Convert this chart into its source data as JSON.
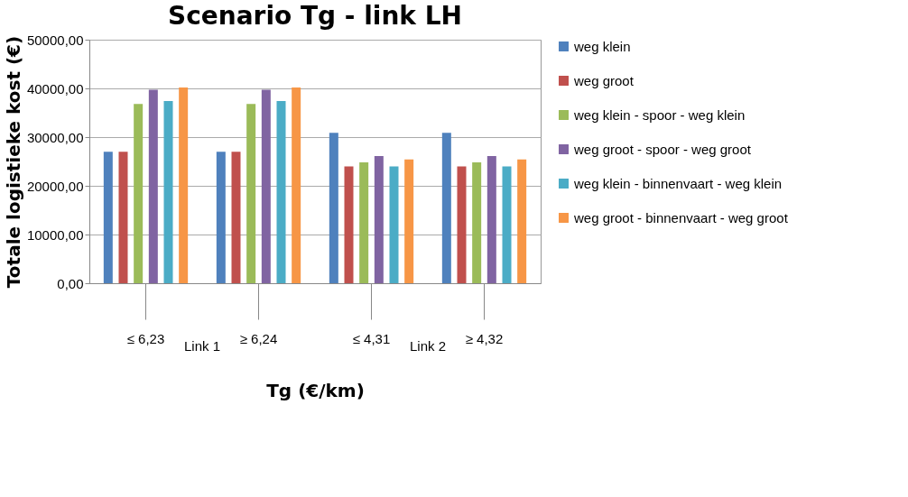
{
  "chart_data": {
    "type": "bar",
    "title": "Scenario Tg - link LH",
    "xlabel": "Tg  (€/km)",
    "ylabel": "Totale logistieke kost (€)",
    "categories": [
      "≤ 6,23",
      "≥ 6,24",
      "≤ 4,31",
      "≥ 4,32"
    ],
    "annotations": [
      "Link 1",
      "Link 2"
    ],
    "series": [
      {
        "name": "weg klein",
        "color": "#4f81bd",
        "values": [
          27000,
          27000,
          30900,
          30900
        ]
      },
      {
        "name": "weg groot",
        "color": "#c0504d",
        "values": [
          27000,
          27000,
          24000,
          24000
        ]
      },
      {
        "name": "weg klein - spoor - weg klein",
        "color": "#9bbb59",
        "values": [
          36800,
          36800,
          24800,
          24800
        ]
      },
      {
        "name": "weg groot - spoor - weg groot",
        "color": "#8064a2",
        "values": [
          39700,
          39700,
          26100,
          26100
        ]
      },
      {
        "name": "weg klein - binnenvaart - weg klein",
        "color": "#4bacc6",
        "values": [
          37400,
          37400,
          24000,
          24000
        ]
      },
      {
        "name": "weg groot - binnenvaart - weg groot",
        "color": "#f79646",
        "values": [
          40200,
          40200,
          25400,
          25400
        ]
      }
    ],
    "ylim": [
      0,
      50000
    ],
    "yticks": [
      {
        "value": 0,
        "label": "0,00"
      },
      {
        "value": 10000,
        "label": "10000,00"
      },
      {
        "value": 20000,
        "label": "20000,00"
      },
      {
        "value": 30000,
        "label": "30000,00"
      },
      {
        "value": 40000,
        "label": "40000,00"
      },
      {
        "value": 50000,
        "label": "50000,00"
      }
    ],
    "grid": "y",
    "legend": "right"
  }
}
